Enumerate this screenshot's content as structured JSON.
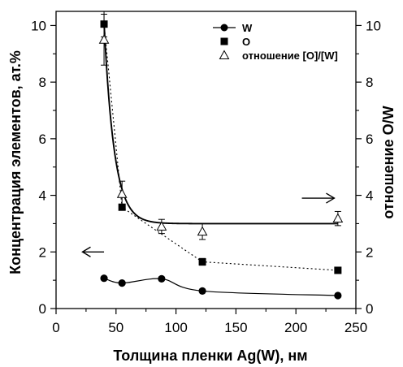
{
  "chart_data": {
    "type": "scatter",
    "xlabel": "Толщина пленки Ag(W), нм",
    "ylabel": "Концентрация элементов, ат.%",
    "y2label": "отношение O/W",
    "xlim": [
      0,
      250
    ],
    "ylim": [
      0,
      10.5
    ],
    "y2lim": [
      0,
      10.5
    ],
    "xticks": [
      "0",
      "50",
      "100",
      "150",
      "200",
      "250"
    ],
    "xtick_values": [
      0,
      50,
      100,
      150,
      200,
      250
    ],
    "yticks": [
      "0",
      "2",
      "4",
      "6",
      "8",
      "10"
    ],
    "ytick_values": [
      0,
      2,
      4,
      6,
      8,
      10
    ],
    "y2ticks": [
      "0",
      "2",
      "4",
      "6",
      "8",
      "10"
    ],
    "y2tick_values": [
      0,
      2,
      4,
      6,
      8,
      10
    ],
    "grid": false,
    "legend_position": "top-right",
    "series": [
      {
        "name": "W",
        "marker": "circle",
        "axis": "left",
        "x": [
          40,
          55,
          88,
          122,
          235
        ],
        "y": [
          1.07,
          0.9,
          1.05,
          0.62,
          0.46
        ],
        "line": "solid-smooth"
      },
      {
        "name": "O",
        "marker": "square",
        "axis": "left",
        "x": [
          40,
          55,
          122,
          235
        ],
        "y": [
          10.05,
          3.58,
          1.65,
          1.35
        ],
        "yerr": [
          0.45,
          0,
          0.12,
          0
        ],
        "line": "dotted"
      },
      {
        "name": "отношение [O]/[W]",
        "marker": "triangle-open",
        "axis": "right",
        "x": [
          40,
          55,
          88,
          122,
          235
        ],
        "y": [
          9.5,
          4.05,
          2.9,
          2.72,
          3.18
        ],
        "yerr": [
          0.9,
          0.45,
          0.25,
          0.28,
          0.25
        ],
        "line": "solid-fit",
        "fit": {
          "base": 3.0,
          "amp": 7.1,
          "x0": 40,
          "tau": 8.5
        }
      }
    ],
    "arrows": [
      {
        "direction": "left",
        "axis": "left",
        "x": [
          22,
          40
        ],
        "y": 2.0
      },
      {
        "direction": "right",
        "axis": "right",
        "x": [
          205,
          232
        ],
        "y": 3.9
      }
    ]
  }
}
